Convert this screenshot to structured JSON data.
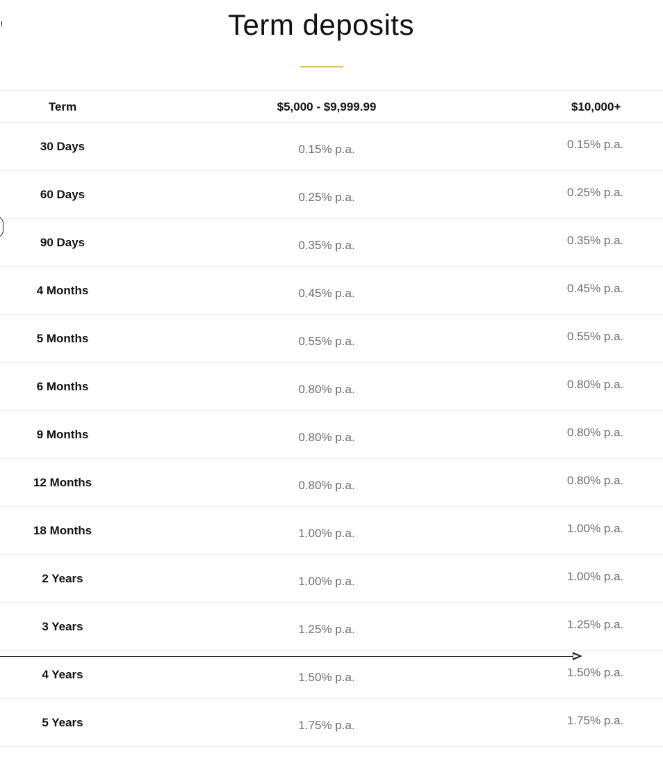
{
  "page": {
    "title": "Term deposits",
    "accent_color": "#e0c74a"
  },
  "table": {
    "headers": {
      "term": "Term",
      "tier_mid": "$5,000 - $9,999.99",
      "tier_high": "$10,000+"
    },
    "rows": [
      {
        "term": "30 Days",
        "tier_mid": "0.15% p.a.",
        "tier_high": "0.15% p.a."
      },
      {
        "term": "60 Days",
        "tier_mid": "0.25% p.a.",
        "tier_high": "0.25% p.a."
      },
      {
        "term": "90 Days",
        "tier_mid": "0.35% p.a.",
        "tier_high": "0.35% p.a."
      },
      {
        "term": "4 Months",
        "tier_mid": "0.45% p.a.",
        "tier_high": "0.45% p.a."
      },
      {
        "term": "5 Months",
        "tier_mid": "0.55% p.a.",
        "tier_high": "0.55% p.a."
      },
      {
        "term": "6 Months",
        "tier_mid": "0.80% p.a.",
        "tier_high": "0.80% p.a."
      },
      {
        "term": "9 Months",
        "tier_mid": "0.80% p.a.",
        "tier_high": "0.80% p.a."
      },
      {
        "term": "12 Months",
        "tier_mid": "0.80% p.a.",
        "tier_high": "0.80% p.a."
      },
      {
        "term": "18 Months",
        "tier_mid": "1.00% p.a.",
        "tier_high": "1.00% p.a."
      },
      {
        "term": "2 Years",
        "tier_mid": "1.00% p.a.",
        "tier_high": "1.00% p.a."
      },
      {
        "term": "3 Years",
        "tier_mid": "1.25% p.a.",
        "tier_high": "1.25% p.a."
      },
      {
        "term": "4 Years",
        "tier_mid": "1.50% p.a.",
        "tier_high": "1.50% p.a."
      },
      {
        "term": "5 Years",
        "tier_mid": "1.75% p.a.",
        "tier_high": "1.75% p.a."
      }
    ]
  },
  "annotations": {
    "arrow_icon": "right-arrow-icon"
  }
}
